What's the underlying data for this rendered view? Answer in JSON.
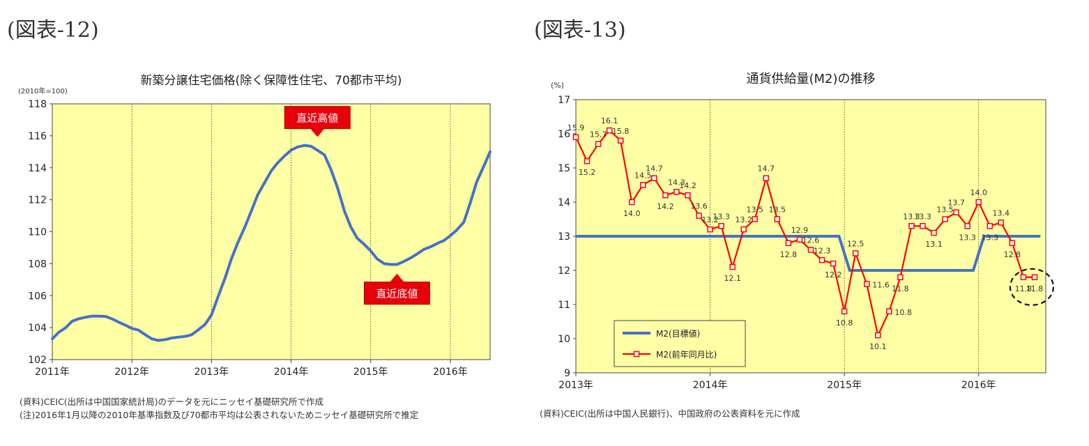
{
  "figures": {
    "fig12_label": "(図表-12)",
    "fig13_label": "(図表-13)"
  },
  "chart_data": [
    {
      "type": "line",
      "title": "新築分譲住宅価格(除く保障性住宅、70都市平均)",
      "unit_label": "(2010年=100)",
      "ylim": [
        102,
        118
      ],
      "yticks": [
        102,
        104,
        106,
        108,
        110,
        112,
        114,
        116,
        118
      ],
      "xlim": [
        2011,
        2016.5
      ],
      "xtick_labels": [
        "2011年",
        "2012年",
        "2013年",
        "2014年",
        "2015年",
        "2016年"
      ],
      "grid": "vertical dotted lines at year boundaries",
      "plot_bg": "#ffffa6",
      "series": [
        {
          "color": "#4472c4",
          "points": [
            [
              2011.0,
              103.3
            ],
            [
              2011.08,
              103.7
            ],
            [
              2011.17,
              104.0
            ],
            [
              2011.25,
              104.4
            ],
            [
              2011.33,
              104.55
            ],
            [
              2011.42,
              104.65
            ],
            [
              2011.5,
              104.72
            ],
            [
              2011.58,
              104.72
            ],
            [
              2011.67,
              104.7
            ],
            [
              2011.75,
              104.55
            ],
            [
              2011.83,
              104.35
            ],
            [
              2011.92,
              104.15
            ],
            [
              2012.0,
              103.95
            ],
            [
              2012.08,
              103.85
            ],
            [
              2012.17,
              103.55
            ],
            [
              2012.25,
              103.3
            ],
            [
              2012.33,
              103.2
            ],
            [
              2012.42,
              103.25
            ],
            [
              2012.5,
              103.35
            ],
            [
              2012.58,
              103.4
            ],
            [
              2012.67,
              103.45
            ],
            [
              2012.75,
              103.55
            ],
            [
              2012.83,
              103.85
            ],
            [
              2012.92,
              104.2
            ],
            [
              2013.0,
              104.8
            ],
            [
              2013.08,
              105.9
            ],
            [
              2013.17,
              107.1
            ],
            [
              2013.25,
              108.3
            ],
            [
              2013.33,
              109.3
            ],
            [
              2013.42,
              110.3
            ],
            [
              2013.5,
              111.3
            ],
            [
              2013.58,
              112.3
            ],
            [
              2013.67,
              113.1
            ],
            [
              2013.75,
              113.8
            ],
            [
              2013.83,
              114.3
            ],
            [
              2013.92,
              114.75
            ],
            [
              2014.0,
              115.1
            ],
            [
              2014.08,
              115.3
            ],
            [
              2014.17,
              115.4
            ],
            [
              2014.25,
              115.35
            ],
            [
              2014.33,
              115.1
            ],
            [
              2014.42,
              114.8
            ],
            [
              2014.5,
              113.9
            ],
            [
              2014.58,
              112.8
            ],
            [
              2014.67,
              111.3
            ],
            [
              2014.75,
              110.3
            ],
            [
              2014.83,
              109.6
            ],
            [
              2014.92,
              109.2
            ],
            [
              2015.0,
              108.8
            ],
            [
              2015.08,
              108.3
            ],
            [
              2015.17,
              108.0
            ],
            [
              2015.25,
              107.95
            ],
            [
              2015.33,
              107.95
            ],
            [
              2015.42,
              108.15
            ],
            [
              2015.5,
              108.35
            ],
            [
              2015.58,
              108.6
            ],
            [
              2015.67,
              108.9
            ],
            [
              2015.75,
              109.05
            ],
            [
              2015.83,
              109.25
            ],
            [
              2015.92,
              109.45
            ],
            [
              2016.0,
              109.75
            ],
            [
              2016.08,
              110.1
            ],
            [
              2016.17,
              110.6
            ],
            [
              2016.25,
              111.8
            ],
            [
              2016.33,
              113.1
            ],
            [
              2016.42,
              114.1
            ],
            [
              2016.5,
              115.0
            ]
          ]
        }
      ],
      "annotations": [
        {
          "text": "直近高値",
          "x": 2014.33,
          "y": 115.4,
          "box": "above"
        },
        {
          "text": "直近底値",
          "x": 2015.33,
          "y": 107.9,
          "box": "below"
        }
      ],
      "notes": [
        "(資料)CEIC(出所は中国国家統計局)のデータを元にニッセイ基礎研究所で作成",
        "(注)2016年1月以降の2010年基準指数及び70都市平均は公表されないためニッセイ基礎研究所で推定"
      ]
    },
    {
      "type": "line",
      "title": "通貨供給量(M2)の推移",
      "unit_label": "(%)",
      "ylim": [
        9,
        17
      ],
      "yticks": [
        9,
        10,
        11,
        12,
        13,
        14,
        15,
        16,
        17
      ],
      "xlim": [
        2013,
        2016.5
      ],
      "xtick_labels": [
        "2013年",
        "2014年",
        "2015年",
        "2016年"
      ],
      "grid": "vertical dotted lines at year boundaries",
      "plot_bg": "#ffffa6",
      "legend_position": "bottom-left",
      "series": [
        {
          "name": "M2(目標値)",
          "color": "#4472c4",
          "points": [
            [
              2013.0,
              13
            ],
            [
              2014.96,
              13
            ],
            [
              2015.04,
              12
            ],
            [
              2015.96,
              12
            ],
            [
              2016.04,
              13
            ],
            [
              2016.46,
              13
            ]
          ]
        },
        {
          "name": "M2(前年同月比)",
          "color": "#ff0000",
          "start": 2013.0,
          "values": [
            15.9,
            15.2,
            15.7,
            16.1,
            15.8,
            14.0,
            14.5,
            14.7,
            14.2,
            14.3,
            14.2,
            13.6,
            13.2,
            13.3,
            12.1,
            13.2,
            13.5,
            14.7,
            13.5,
            12.8,
            12.9,
            12.6,
            12.3,
            12.2,
            10.8,
            12.5,
            11.6,
            10.1,
            10.8,
            11.8,
            13.3,
            13.3,
            13.1,
            13.5,
            13.7,
            13.3,
            14.0,
            13.3,
            13.4,
            12.8,
            11.8,
            11.8
          ],
          "labels": [
            "15.9",
            "15.2",
            "15.7",
            "16.1",
            "15.8",
            "14.0",
            "14.5",
            "14.7",
            "14.2",
            "14.3",
            "14.2",
            "13.6",
            "13.2",
            "13.3",
            "12.1",
            "13.2",
            "13.5",
            "14.7",
            "13.5",
            "12.8",
            "12.9",
            "12.6",
            "12.3",
            "12.2",
            "10.8",
            "12.5",
            "11.6",
            "10.1",
            "10.8",
            "11.8",
            "13.3",
            "13.3",
            "13.1",
            "13.5",
            "13.7",
            "13.3",
            "14.0",
            "13.3",
            "13.4",
            "12.8",
            "11.8",
            "11.8"
          ],
          "label_pos": [
            "a",
            "b",
            "a",
            "a",
            "a",
            "b",
            "a",
            "a",
            "b",
            "a",
            "a",
            "a",
            "a",
            "a",
            "b",
            "a",
            "a",
            "a",
            "a",
            "b",
            "a",
            "a",
            "a",
            "b",
            "b",
            "a",
            "r",
            "b",
            "r",
            "b",
            "a",
            "a",
            "b",
            "a",
            "a",
            "b",
            "a",
            "b",
            "a",
            "b",
            "b",
            "b"
          ]
        }
      ],
      "highlight": "dashed ellipse around the last two points",
      "notes": [
        "(資料)CEIC(出所は中国人民銀行)、中国政府の公表資料を元に作成"
      ]
    }
  ]
}
